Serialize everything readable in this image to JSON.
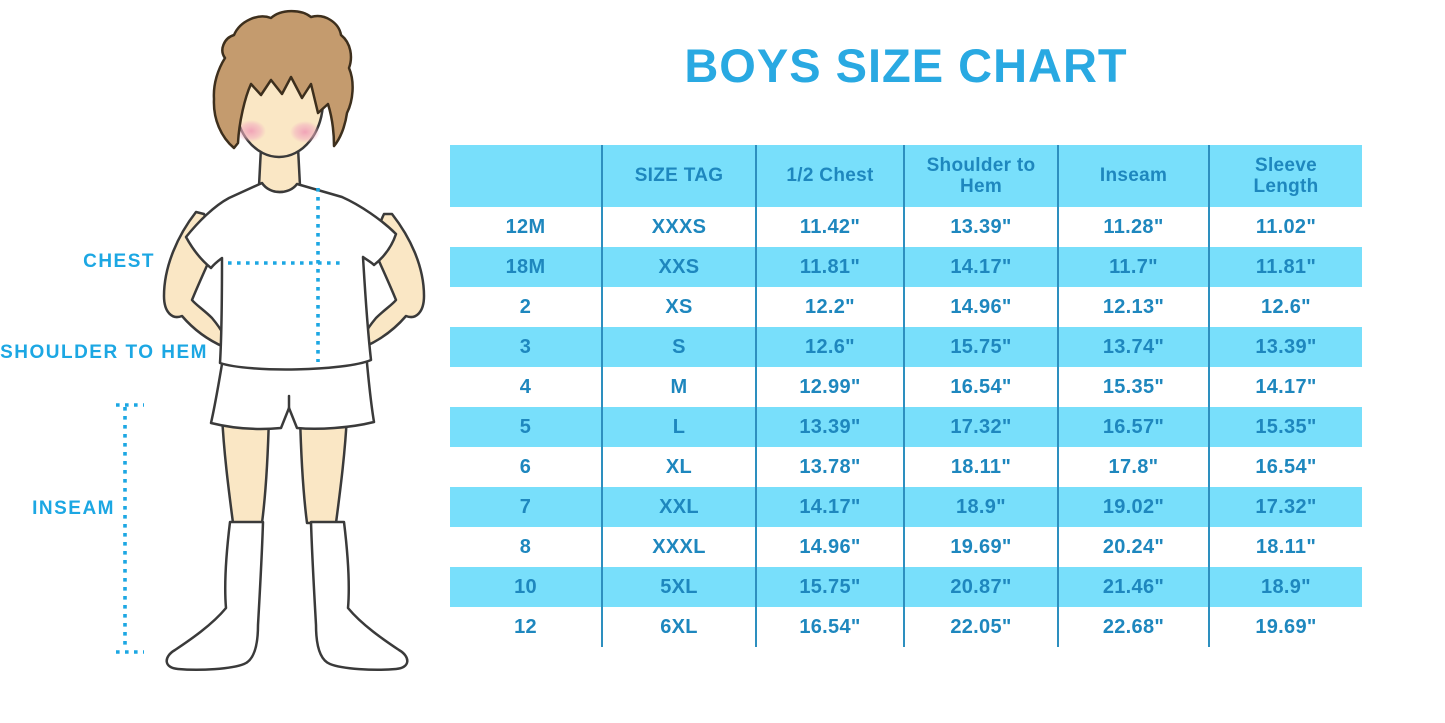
{
  "title": "BOYS SIZE CHART",
  "colors": {
    "accent": "#1CA7E3",
    "title": "#29A9E2",
    "table_text": "#1E87BE",
    "stripe": "#78DFFB",
    "separator": "#2D8FBF"
  },
  "figure": {
    "labels": {
      "chest": "CHEST",
      "shoulder_to_hem": "SHOULDER TO HEM",
      "inseam": "INSEAM"
    }
  },
  "chart_data": {
    "type": "table",
    "title": "BOYS SIZE CHART",
    "columns": [
      "",
      "SIZE TAG",
      "1/2 Chest",
      "Shoulder to Hem",
      "Inseam",
      "Sleeve Length"
    ],
    "rows": [
      [
        "12M",
        "XXXS",
        "11.42\"",
        "13.39\"",
        "11.28\"",
        "11.02\""
      ],
      [
        "18M",
        "XXS",
        "11.81\"",
        "14.17\"",
        "11.7\"",
        "11.81\""
      ],
      [
        "2",
        "XS",
        "12.2\"",
        "14.96\"",
        "12.13\"",
        "12.6\""
      ],
      [
        "3",
        "S",
        "12.6\"",
        "15.75\"",
        "13.74\"",
        "13.39\""
      ],
      [
        "4",
        "M",
        "12.99\"",
        "16.54\"",
        "15.35\"",
        "14.17\""
      ],
      [
        "5",
        "L",
        "13.39\"",
        "17.32\"",
        "16.57\"",
        "15.35\""
      ],
      [
        "6",
        "XL",
        "13.78\"",
        "18.11\"",
        "17.8\"",
        "16.54\""
      ],
      [
        "7",
        "XXL",
        "14.17\"",
        "18.9\"",
        "19.02\"",
        "17.32\""
      ],
      [
        "8",
        "XXXL",
        "14.96\"",
        "19.69\"",
        "20.24\"",
        "18.11\""
      ],
      [
        "10",
        "5XL",
        "15.75\"",
        "20.87\"",
        "21.46\"",
        "18.9\""
      ],
      [
        "12",
        "6XL",
        "16.54\"",
        "22.05\"",
        "22.68\"",
        "19.69\""
      ]
    ],
    "stripe_pattern": "header and every second data row highlighted light blue",
    "legend_position": "none",
    "grid": "vertical separators only"
  }
}
